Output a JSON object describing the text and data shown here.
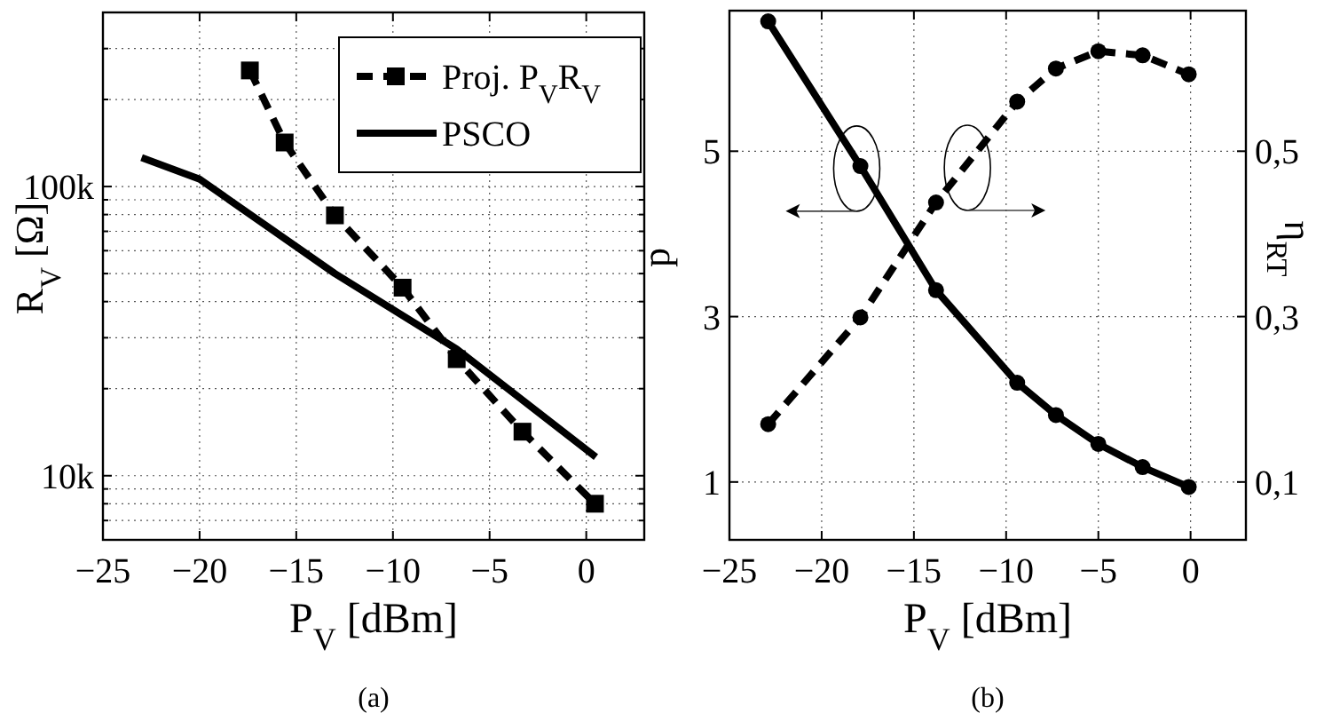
{
  "chart_data": [
    {
      "type": "line",
      "xlabel": "P$_{V}$ [dBm]",
      "ylabel": "R$_{V}$ [Ω]",
      "annotations": [
        "(a)"
      ],
      "log": "y",
      "grid": true,
      "legend": "top right",
      "xlim": [
        -25,
        3
      ],
      "xticks": [
        {
          "value": -25,
          "label": "−25"
        },
        {
          "value": -20,
          "label": "−20"
        },
        {
          "value": -15,
          "label": "−15"
        },
        {
          "value": -10,
          "label": "−10"
        },
        {
          "value": -5,
          "label": "−5"
        },
        0
      ],
      "ylim": [
        6000,
        400000
      ],
      "yticks": [
        {
          "value": 7000,
          "label": null
        },
        {
          "value": 8000,
          "label": null
        },
        {
          "value": 9000,
          "label": null
        },
        {
          "value": 10000,
          "label": "10k"
        },
        {
          "value": 20000,
          "label": null
        },
        {
          "value": 30000,
          "label": null
        },
        {
          "value": 40000,
          "label": null
        },
        {
          "value": 50000,
          "label": null
        },
        {
          "value": 60000,
          "label": null
        },
        {
          "value": 70000,
          "label": null
        },
        {
          "value": 80000,
          "label": null
        },
        {
          "value": 90000,
          "label": null
        },
        {
          "value": 100000,
          "label": "100k"
        },
        {
          "value": 200000,
          "label": null
        },
        {
          "value": 300000,
          "label": null
        }
      ],
      "series": [
        {
          "name": "Proj. P$_{V}$R$_{V}$",
          "color": "#000000",
          "marker": "square",
          "line_style": "dashed",
          "x": [
            -17.4,
            -15.6,
            -13.0,
            -9.5,
            -6.7,
            -3.3,
            0.45
          ],
          "values": [
            252000,
            142000,
            79500,
            44700,
            25300,
            14200,
            8000
          ]
        },
        {
          "name": "PSCO",
          "color": "#000000",
          "marker": "none",
          "line_style": "solid",
          "x": [
            -23.0,
            -20.0,
            -13.0,
            -6.7,
            0.5
          ],
          "values": [
            126000,
            106000,
            50000,
            27400,
            11600
          ]
        }
      ]
    },
    {
      "type": "line",
      "xlabel": "P$_{V}$ [dBm]",
      "ylabel": "p",
      "y2label": "η$_{RT}$",
      "annotations": [
        "(b)"
      ],
      "grid": true,
      "xlim": [
        -25,
        3
      ],
      "xticks": [
        {
          "value": -25,
          "label": "−25"
        },
        {
          "value": -20,
          "label": "−20"
        },
        {
          "value": -15,
          "label": "−15"
        },
        {
          "value": -10,
          "label": "−10"
        },
        {
          "value": -5,
          "label": "−5"
        },
        0
      ],
      "ylim": [
        0.3,
        6.7
      ],
      "yticks": [
        1,
        3,
        5
      ],
      "y2lim": [
        0.03,
        0.67
      ],
      "y2ticks": [
        {
          "value": 0.1,
          "label": "0,1"
        },
        {
          "value": 0.3,
          "label": "0,3"
        },
        {
          "value": 0.5,
          "label": "0,5"
        }
      ],
      "series": [
        {
          "color": "#000000",
          "marker": "circle",
          "line_style": "solid",
          "x": [
            -22.9,
            -17.9,
            -13.8,
            -9.4,
            -7.3,
            -5.0,
            -2.6,
            -0.1
          ],
          "values": [
            6.57,
            4.82,
            3.32,
            2.2,
            1.81,
            1.46,
            1.18,
            0.94
          ]
        },
        {
          "color": "#000000",
          "marker": "circle",
          "line_style": "dashed",
          "axis": "y2",
          "x": [
            -22.9,
            -17.9,
            -13.8,
            -9.4,
            -7.3,
            -5.0,
            -2.6,
            -0.1
          ],
          "values": [
            0.17,
            0.299,
            0.438,
            0.56,
            0.6,
            0.621,
            0.616,
            0.593
          ]
        }
      ]
    }
  ]
}
